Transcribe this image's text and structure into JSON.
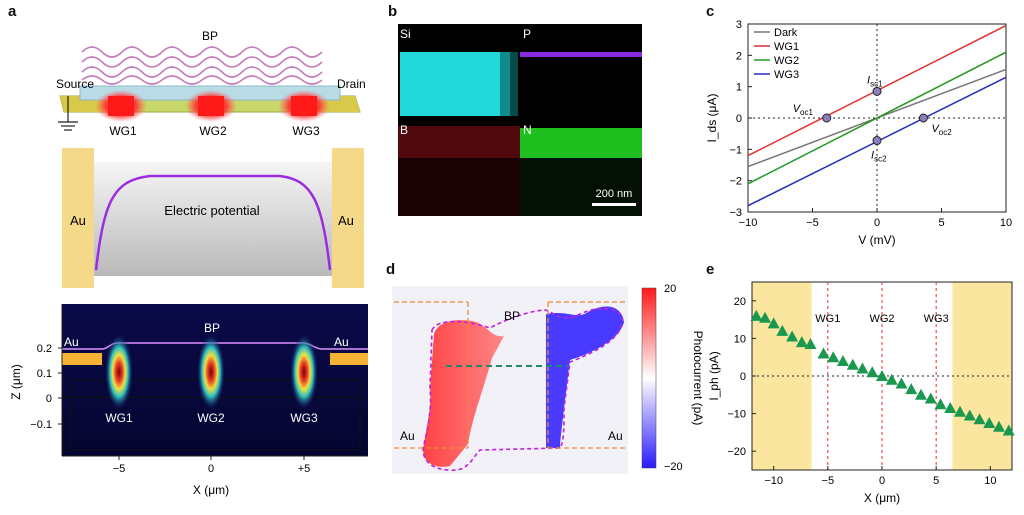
{
  "panels": {
    "a": {
      "label": "a",
      "device": {
        "bp": "BP",
        "source": "Source",
        "drain": "Drain",
        "wg1": "WG1",
        "wg2": "WG2",
        "wg3": "WG3"
      },
      "potential": {
        "au_left": "Au",
        "au_right": "Au",
        "text": "Electric potential"
      },
      "field": {
        "au_left": "Au",
        "au_right": "Au",
        "bp": "BP",
        "wg1": "WG1",
        "wg2": "WG2",
        "wg3": "WG3",
        "ylabel": "Z (μm)",
        "xlabel": "X (μm)",
        "yticks": [
          "0.2",
          "0.1",
          "0",
          "−0.1"
        ],
        "xticks": [
          "−5",
          "0",
          "+5"
        ]
      }
    },
    "b": {
      "label": "b",
      "tiles": {
        "si": "Si",
        "p": "P",
        "b": "B",
        "n": "N"
      },
      "scalebar": "200 nm",
      "colors": {
        "si": "#22d8d8",
        "p": "#8a2be2",
        "b": "#c0202a",
        "n": "#2bd62b"
      }
    },
    "c": {
      "label": "c"
    },
    "d": {
      "label": "d",
      "bp": "BP",
      "au_left": "Au",
      "au_right": "Au",
      "colorbar": {
        "title": "Photocurrent (pA)",
        "max": "20",
        "min": "−20"
      }
    },
    "e": {
      "label": "e"
    }
  },
  "chart_data": [
    {
      "id": "c",
      "type": "line",
      "xlabel": "V (mV)",
      "ylabel": "I_ds (μA)",
      "xlim": [
        -10,
        10
      ],
      "ylim": [
        -3,
        3
      ],
      "xticks": [
        -10,
        -5,
        0,
        5,
        10
      ],
      "yticks": [
        -3,
        -2,
        -1,
        0,
        1,
        2,
        3
      ],
      "legend_position": "top-left",
      "series": [
        {
          "name": "Dark",
          "color": "#777777",
          "x": [
            -10,
            10
          ],
          "y": [
            -1.55,
            1.55
          ]
        },
        {
          "name": "WG1",
          "color": "#e03030",
          "x": [
            -10,
            10
          ],
          "y": [
            -1.2,
            2.95
          ]
        },
        {
          "name": "WG2",
          "color": "#229922",
          "x": [
            -10,
            10
          ],
          "y": [
            -2.1,
            2.1
          ]
        },
        {
          "name": "WG3",
          "color": "#2a2abf",
          "x": [
            -10,
            10
          ],
          "y": [
            -2.8,
            1.3
          ]
        }
      ],
      "annotations": [
        {
          "text": "Isc1",
          "x": 0,
          "y": 0.85
        },
        {
          "text": "Voc1",
          "x": -3.9,
          "y": 0
        },
        {
          "text": "Isc2",
          "x": 0,
          "y": -0.72
        },
        {
          "text": "Voc2",
          "x": 3.6,
          "y": 0
        }
      ]
    },
    {
      "id": "e",
      "type": "scatter",
      "xlabel": "X (μm)",
      "ylabel": "I_ph (pA)",
      "xlim": [
        -12,
        12
      ],
      "ylim": [
        -25,
        25
      ],
      "xticks": [
        -10,
        -5,
        0,
        5,
        10
      ],
      "yticks": [
        -20,
        -10,
        0,
        10,
        20
      ],
      "color": "#1a9850",
      "shaded_regions": [
        [
          -12,
          -6.5
        ],
        [
          6.5,
          12
        ]
      ],
      "marker_lines": [
        {
          "name": "WG1",
          "x": -5
        },
        {
          "name": "WG2",
          "x": 0
        },
        {
          "name": "WG3",
          "x": 5
        }
      ],
      "x": [
        -11.6,
        -10.8,
        -10.0,
        -9.2,
        -8.3,
        -7.4,
        -6.6,
        -5.4,
        -4.5,
        -3.6,
        -2.7,
        -1.8,
        -0.9,
        0.0,
        0.9,
        1.8,
        2.7,
        3.6,
        4.5,
        5.4,
        6.3,
        7.2,
        8.1,
        9.0,
        9.9,
        10.8,
        11.7
      ],
      "y": [
        16,
        15.5,
        14,
        12,
        10.5,
        9,
        8.5,
        6,
        5,
        4,
        3,
        2,
        1,
        0,
        -1,
        -2,
        -3.5,
        -5,
        -6,
        -7.5,
        -8.5,
        -9.5,
        -10.5,
        -11.5,
        -12.5,
        -13.5,
        -14.5
      ]
    }
  ]
}
